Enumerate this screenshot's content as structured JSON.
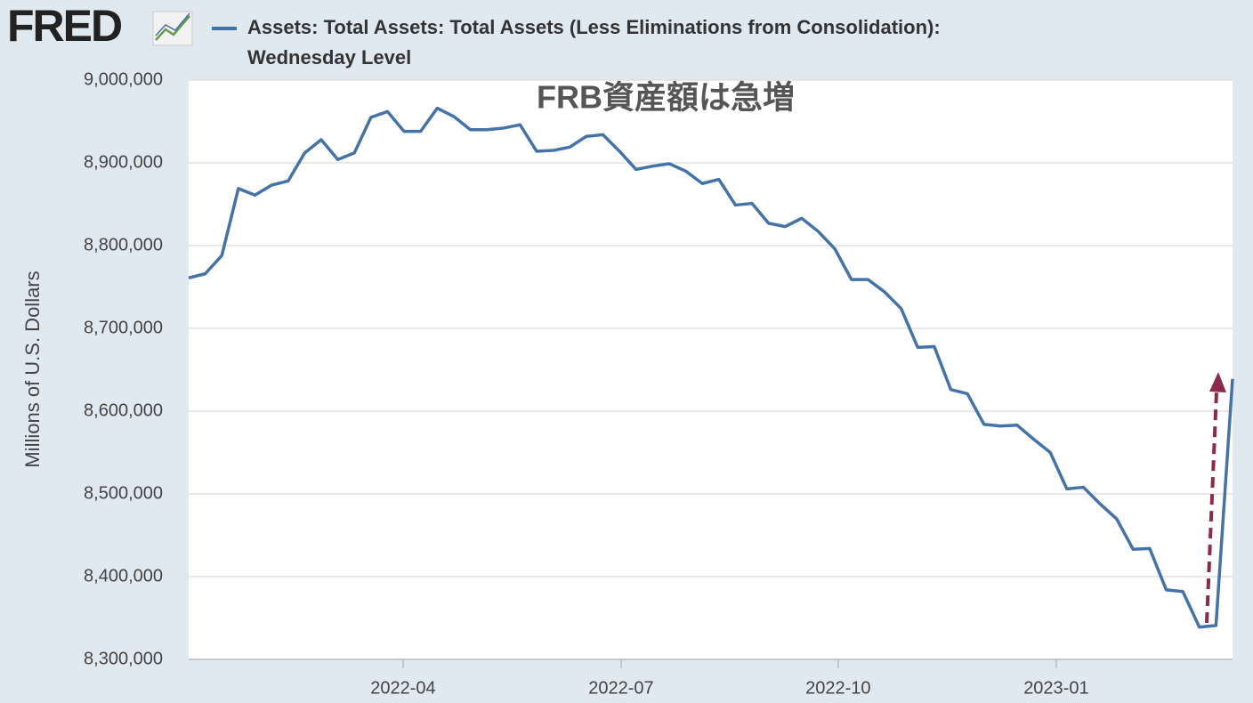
{
  "chart_data": {
    "type": "line",
    "logo": "FRED",
    "annotation": "FRB資産額は急増",
    "y_label": "Millions of U.S. Dollars",
    "x": [
      0,
      1,
      2,
      3,
      4,
      5,
      6,
      7,
      8,
      9,
      10,
      11,
      12,
      13,
      14,
      15,
      16,
      17,
      18,
      19,
      20,
      21,
      22,
      23,
      24,
      25,
      26,
      27,
      28,
      29,
      30,
      31,
      32,
      33,
      34,
      35,
      36,
      37,
      38,
      39,
      40,
      41,
      42,
      43,
      44,
      45,
      46,
      47,
      48,
      49,
      50,
      51,
      52,
      53,
      54,
      55,
      56,
      57,
      58,
      59,
      60,
      61,
      62,
      63
    ],
    "series": [
      {
        "name": "Assets: Total Assets: Total Assets (Less Eliminations from Consolidation): Wednesday Level",
        "color": "#4572a7",
        "values": [
          8761000,
          8766000,
          8788000,
          8869000,
          8861000,
          8873000,
          8878000,
          8912000,
          8928000,
          8904000,
          8912000,
          8955000,
          8962000,
          8938000,
          8938000,
          8966000,
          8956000,
          8940000,
          8940000,
          8942000,
          8946000,
          8914000,
          8915000,
          8919000,
          8932000,
          8934000,
          8914000,
          8892000,
          8896000,
          8899000,
          8890000,
          8875000,
          8880000,
          8849000,
          8851000,
          8827000,
          8823000,
          8833000,
          8817000,
          8796000,
          8759000,
          8759000,
          8744000,
          8724000,
          8677000,
          8678000,
          8626000,
          8621000,
          8584000,
          8582000,
          8583000,
          8566000,
          8550000,
          8506000,
          8508000,
          8488000,
          8470000,
          8433000,
          8434000,
          8384000,
          8382000,
          8339000,
          8341000,
          8639000
        ]
      }
    ],
    "xlim": [
      0,
      63
    ],
    "xticks": [
      {
        "value": 12.94,
        "label": "2022-04"
      },
      {
        "value": 26.1,
        "label": "2022-07"
      },
      {
        "value": 39.2,
        "label": "2022-10"
      },
      {
        "value": 52.36,
        "label": "2023-01"
      }
    ],
    "ylim": [
      8300000,
      9000000
    ],
    "yticks": [
      {
        "value": 8300000,
        "label": "8,300,000"
      },
      {
        "value": 8400000,
        "label": "8,400,000"
      },
      {
        "value": 8500000,
        "label": "8,500,000"
      },
      {
        "value": 8600000,
        "label": "8,600,000"
      },
      {
        "value": 8700000,
        "label": "8,700,000"
      },
      {
        "value": 8800000,
        "label": "8,800,000"
      },
      {
        "value": 8900000,
        "label": "8,900,000"
      },
      {
        "value": 9000000,
        "label": "9,000,000"
      }
    ],
    "grid": true
  }
}
